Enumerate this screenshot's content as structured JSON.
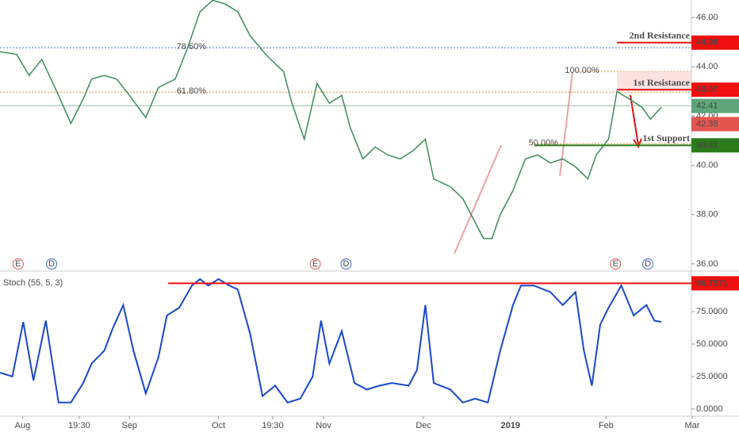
{
  "chart_data": [
    {
      "type": "line",
      "color": "#3c8c5a",
      "x": [
        0,
        4.6,
        8,
        11.5,
        16.1,
        19.5,
        22.9,
        25.2,
        28.7,
        32.1,
        35.6,
        40.1,
        43.6,
        48.2,
        51.6,
        55,
        58.5,
        61.9,
        65.4,
        68.8,
        73.4,
        78,
        80.3,
        83.7,
        87.2,
        90.6,
        94,
        96.3,
        99.8,
        103.2,
        106.7,
        110.1,
        113.5,
        117,
        119.3,
        123.9,
        127.3,
        130.7,
        133,
        135.3,
        137.6,
        141.1,
        144.5,
        147.9,
        151.4,
        154.8,
        158.3,
        161.7,
        164,
        167.4,
        169.7,
        173.2,
        176.6,
        178.9,
        181.9
      ],
      "values": [
        44.61,
        44.5,
        43.65,
        44.3,
        42.84,
        41.7,
        42.7,
        43.5,
        43.65,
        43.5,
        42.84,
        41.94,
        43.16,
        43.5,
        44.77,
        46.23,
        46.7,
        46.55,
        46.23,
        45.26,
        44.45,
        43.8,
        42.52,
        41.06,
        43.32,
        42.52,
        42.84,
        41.55,
        40.26,
        40.74,
        40.42,
        40.26,
        40.58,
        41.06,
        39.45,
        39.13,
        38.65,
        37.68,
        37.03,
        37.03,
        38.0,
        38.97,
        40.26,
        40.42,
        40.1,
        40.26,
        39.94,
        39.45,
        40.42,
        41.06,
        43.0,
        42.68,
        42.36,
        41.87,
        42.36
      ],
      "xlim": [
        0,
        200
      ],
      "ylim": [
        35.77,
        46.71
      ],
      "yticks": [
        {
          "value": 36,
          "label": "36.00"
        },
        {
          "value": 38,
          "label": "38.00"
        },
        {
          "value": 40,
          "label": "40.00"
        },
        {
          "value": 42,
          "label": "42.00"
        },
        {
          "value": 44,
          "label": "44.00"
        },
        {
          "value": 46,
          "label": "46.00"
        }
      ],
      "xticks": [
        {
          "value": 6.2,
          "label": "Aug"
        },
        {
          "value": 21.8,
          "label": "19:30"
        },
        {
          "value": 35.6,
          "label": "Sep"
        },
        {
          "value": 60.1,
          "label": "Oct"
        },
        {
          "value": 75,
          "label": "19:30"
        },
        {
          "value": 89,
          "label": "Nov"
        },
        {
          "value": 116.5,
          "label": "Dec"
        },
        {
          "value": 140.4,
          "label": "2019",
          "bold": true
        },
        {
          "value": 166.7,
          "label": "Feb"
        },
        {
          "value": 190.4,
          "label": "Mar"
        }
      ],
      "levels": [
        {
          "name": "2nd Resistance",
          "value": 44.98,
          "label": "44.98",
          "color": "#f01010",
          "x0": 169.7
        },
        {
          "name": "1st Resistance",
          "value": 43.07,
          "label": "43.07",
          "color": "#f01010",
          "x0": 169.7
        },
        {
          "name": "1st Support",
          "value": 40.81,
          "label": "40.81",
          "color": "#2a7a1a",
          "x0": 147
        }
      ],
      "fib": [
        {
          "label": "78.60%",
          "value": 44.77,
          "color": "#4a78c8",
          "x0": 0
        },
        {
          "label": "61.80%",
          "value": 42.97,
          "color": "#e0962a",
          "x0": 0
        },
        {
          "label": "100.00%",
          "value": 43.81,
          "color": "#e0962a",
          "x0": 158.3
        },
        {
          "label": "50.00%",
          "value": 40.87,
          "color": "#e0962a",
          "x0": 147
        }
      ],
      "price_labels": [
        {
          "value": 42.41,
          "label": "42.41",
          "color": "#5fa57a"
        },
        {
          "value": 42.38,
          "label": "42.38",
          "color": "#e2564f"
        }
      ],
      "events": [
        {
          "label": "E",
          "x": 5
        },
        {
          "label": "D",
          "x": 14.2
        },
        {
          "label": "E",
          "x": 86.7
        },
        {
          "label": "D",
          "x": 95.2
        },
        {
          "label": "E",
          "x": 169.3
        },
        {
          "label": "D",
          "x": 178.2
        }
      ]
    },
    {
      "type": "line",
      "title": "Stoch (55, 5, 3)",
      "color": "#1848cc",
      "x": [
        0,
        3.4,
        6.4,
        9.2,
        12.6,
        16.1,
        19.5,
        22.9,
        25.2,
        28.7,
        31,
        33.9,
        36.7,
        40.1,
        43.6,
        45.9,
        49.3,
        52.8,
        55,
        57.3,
        60.1,
        63.1,
        65.4,
        68.8,
        72.2,
        75.7,
        79.1,
        82.6,
        86,
        88.3,
        90.6,
        94,
        97.5,
        100.9,
        104.4,
        107.8,
        112.4,
        114.7,
        117,
        119.3,
        123.9,
        127.3,
        130.7,
        134.2,
        137.6,
        141.1,
        143.3,
        146.8,
        151.4,
        154.8,
        158.3,
        160.6,
        162.8,
        165.1,
        167.4,
        170.9,
        174.3,
        177.8,
        180,
        181.9
      ],
      "values": [
        28,
        25,
        67,
        22,
        68,
        5,
        5,
        20,
        35,
        45,
        62,
        80,
        45,
        12,
        40,
        72,
        78,
        95,
        100,
        95,
        100,
        95,
        92,
        58,
        10,
        18,
        5,
        8,
        25,
        68,
        35,
        60,
        20,
        15,
        18,
        20,
        18,
        30,
        80,
        20,
        15,
        5,
        8,
        5,
        45,
        80,
        95,
        95,
        90,
        80,
        90,
        45,
        18,
        65,
        78,
        95,
        72,
        80,
        68,
        67
      ],
      "xlim": [
        0,
        200
      ],
      "ylim": [
        -5.5,
        104.3
      ],
      "yticks": [
        {
          "value": 0,
          "label": "0.0000"
        },
        {
          "value": 25,
          "label": "25.0000"
        },
        {
          "value": 50,
          "label": "50.0000"
        },
        {
          "value": 75,
          "label": "75.0000"
        }
      ],
      "level": {
        "value": 96.7571,
        "label": "96.7571",
        "color": "#f01010"
      }
    }
  ]
}
